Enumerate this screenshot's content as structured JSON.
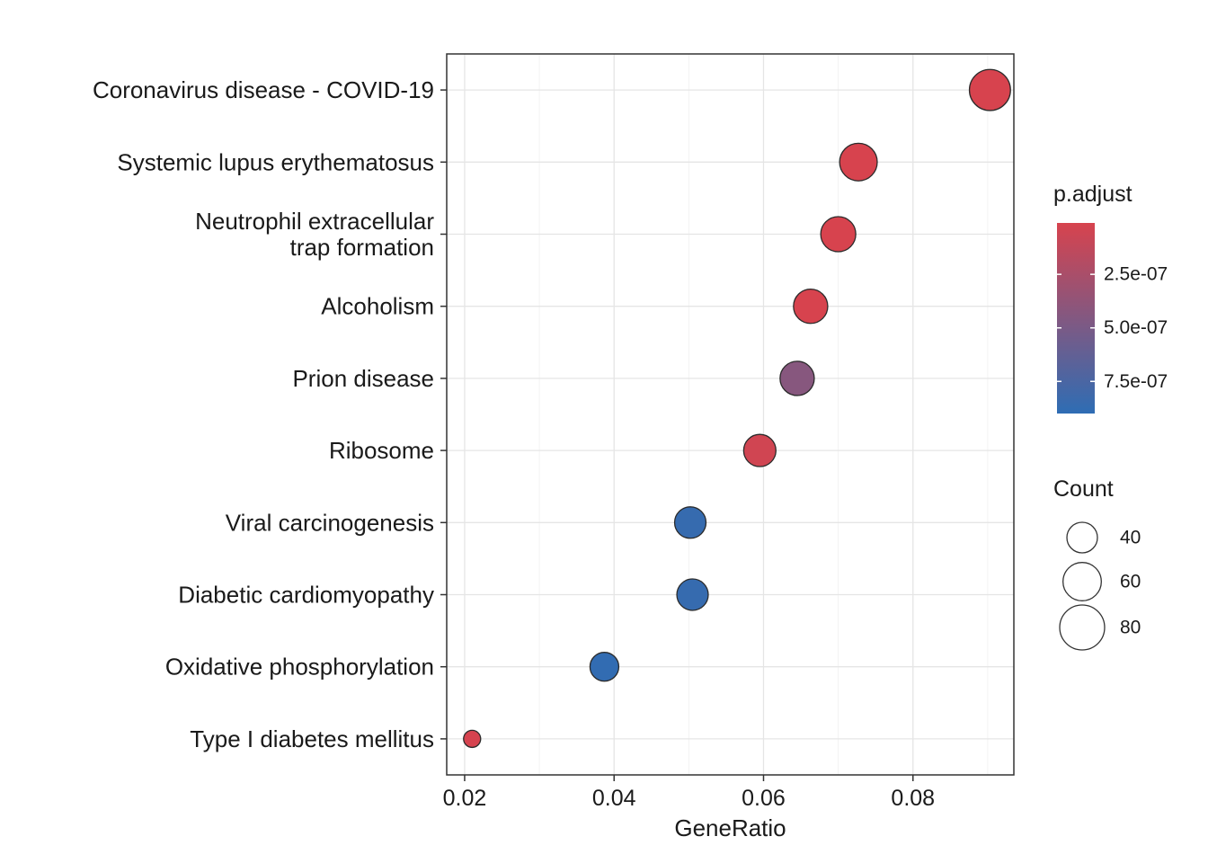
{
  "chart_data": {
    "type": "scatter",
    "title": "",
    "xlabel": "GeneRatio",
    "ylabel": "",
    "xlim": [
      0.0176,
      0.0935
    ],
    "x_ticks": [
      0.02,
      0.04,
      0.06,
      0.08
    ],
    "x_tick_labels": [
      "0.02",
      "0.04",
      "0.06",
      "0.08"
    ],
    "x_minor_ticks": [
      0.03,
      0.05,
      0.07,
      0.09
    ],
    "grid": true,
    "legend_position": "right",
    "points": [
      {
        "label": "Coronavirus disease - COVID-19",
        "label_lines": [
          "Coronavirus disease - COVID-19"
        ],
        "gene_ratio": 0.0903,
        "count": 68,
        "p_adjust": 1.2e-09
      },
      {
        "label": "Systemic lupus erythematosus",
        "label_lines": [
          "Systemic lupus erythematosus"
        ],
        "gene_ratio": 0.0727,
        "count": 58,
        "p_adjust": 2.1e-09
      },
      {
        "label": "Neutrophil extracellular trap formation",
        "label_lines": [
          "Neutrophil extracellular",
          "trap formation"
        ],
        "gene_ratio": 0.07,
        "count": 51,
        "p_adjust": 4.9e-09
      },
      {
        "label": "Alcoholism",
        "label_lines": [
          "Alcoholism"
        ],
        "gene_ratio": 0.0663,
        "count": 49,
        "p_adjust": 8.4e-09
      },
      {
        "label": "Prion disease",
        "label_lines": [
          "Prion disease"
        ],
        "gene_ratio": 0.0645,
        "count": 49,
        "p_adjust": 4.3e-07
      },
      {
        "label": "Ribosome",
        "label_lines": [
          "Ribosome"
        ],
        "gene_ratio": 0.0595,
        "count": 44,
        "p_adjust": 4.5e-08
      },
      {
        "label": "Viral carcinogenesis",
        "label_lines": [
          "Viral carcinogenesis"
        ],
        "gene_ratio": 0.0502,
        "count": 42,
        "p_adjust": 8.6e-07
      },
      {
        "label": "Diabetic cardiomyopathy",
        "label_lines": [
          "Diabetic cardiomyopathy"
        ],
        "gene_ratio": 0.0505,
        "count": 42,
        "p_adjust": 8.6e-07
      },
      {
        "label": "Oxidative phosphorylation",
        "label_lines": [
          "Oxidative phosphorylation"
        ],
        "gene_ratio": 0.0387,
        "count": 36,
        "p_adjust": 8.8e-07
      },
      {
        "label": "Type I diabetes mellitus",
        "label_lines": [
          "Type I diabetes mellitus"
        ],
        "gene_ratio": 0.021,
        "count": 15,
        "p_adjust": 1.6e-08
      }
    ],
    "color_scale": {
      "title": "p.adjust",
      "low_color": "#D7434E",
      "high_color": "#2E6DB4",
      "min": 1e-08,
      "max": 9e-07,
      "tick_values": [
        2.5e-07,
        5e-07,
        7.5e-07
      ],
      "tick_labels": [
        "2.5e-07",
        "5.0e-07",
        "7.5e-07"
      ]
    },
    "size_scale": {
      "title": "Count",
      "legend_counts": [
        40,
        60,
        80
      ],
      "legend_labels": [
        "40",
        "60",
        "80"
      ]
    }
  },
  "legend": {
    "p_adjust_title": "p.adjust",
    "count_title": "Count"
  }
}
